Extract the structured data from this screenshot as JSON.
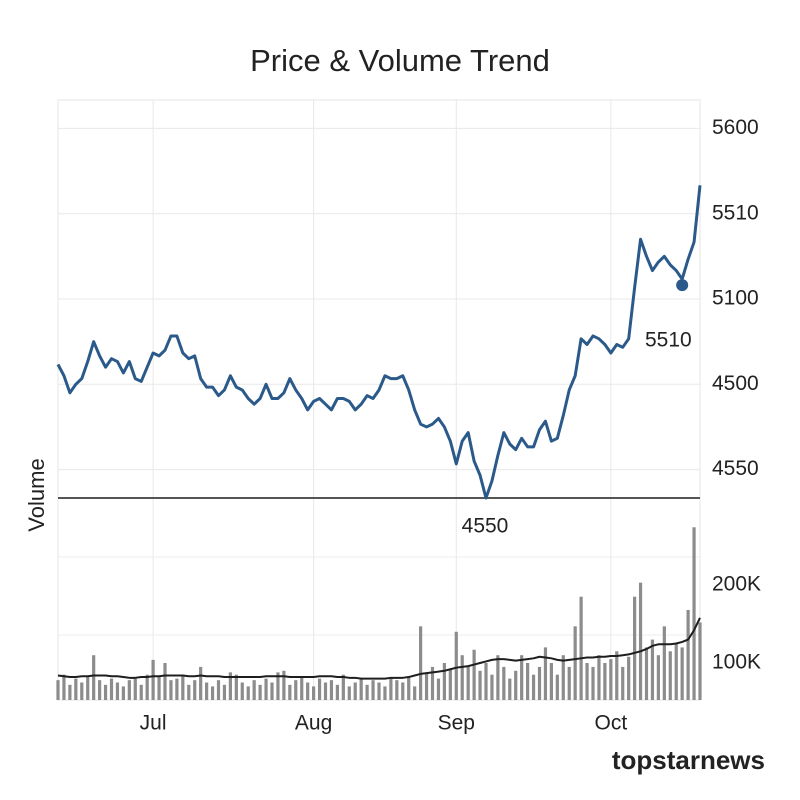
{
  "chart_data": {
    "type": "line",
    "title": "Price & Volume Trend",
    "y2_label": "Volume",
    "watermark": "topstarnews",
    "categories": [
      null,
      null,
      null,
      null,
      null,
      null,
      null,
      null,
      null,
      null,
      null,
      null,
      null,
      null,
      null,
      null,
      "Jul",
      null,
      null,
      null,
      null,
      null,
      null,
      null,
      null,
      null,
      null,
      null,
      null,
      null,
      null,
      null,
      null,
      null,
      null,
      null,
      null,
      null,
      null,
      null,
      null,
      null,
      null,
      "Aug",
      null,
      null,
      null,
      null,
      null,
      null,
      null,
      null,
      null,
      null,
      null,
      null,
      null,
      null,
      null,
      null,
      null,
      null,
      null,
      null,
      null,
      null,
      null,
      "Sep",
      null,
      null,
      null,
      null,
      null,
      null,
      null,
      null,
      null,
      null,
      null,
      null,
      null,
      null,
      null,
      null,
      null,
      null,
      null,
      null,
      null,
      null,
      null,
      null,
      null,
      "Oct",
      null,
      null,
      null,
      null,
      null,
      null,
      null,
      null,
      null,
      null,
      null,
      null,
      null,
      null,
      null
    ],
    "ylim": [
      4300,
      5700
    ],
    "yticks": [
      5600,
      {
        "value": 5300,
        "label": "5510"
      },
      {
        "value": 5000,
        "label": "5100"
      },
      {
        "value": 4700,
        "label": "4500"
      },
      {
        "value": 4400,
        "label": "4550"
      }
    ],
    "y2lim": [
      50000,
      280000
    ],
    "y2ticks": [
      {
        "value": 200000,
        "label": "200K"
      },
      {
        "value": 100000,
        "label": "100K"
      }
    ],
    "grid": true,
    "reference_line": 4300,
    "annotations": [
      {
        "text": "5510"
      },
      {
        "text": "4550"
      }
    ],
    "series": [
      {
        "type": "line",
        "color": "#2b5a8a",
        "axis": "y",
        "values": [
          4770,
          4730,
          4670,
          4700,
          4720,
          4780,
          4850,
          4800,
          4760,
          4790,
          4780,
          4740,
          4780,
          4720,
          4710,
          4760,
          4810,
          4800,
          4820,
          4870,
          4870,
          4810,
          4790,
          4800,
          4720,
          4690,
          4690,
          4660,
          4680,
          4730,
          4690,
          4680,
          4650,
          4630,
          4650,
          4700,
          4650,
          4650,
          4670,
          4720,
          4680,
          4650,
          4610,
          4640,
          4650,
          4630,
          4610,
          4650,
          4650,
          4640,
          4610,
          4630,
          4660,
          4650,
          4680,
          4730,
          4720,
          4720,
          4730,
          4680,
          4610,
          4560,
          4550,
          4560,
          4580,
          4550,
          4500,
          4420,
          4500,
          4530,
          4430,
          4380,
          4300,
          4360,
          4450,
          4530,
          4490,
          4470,
          4510,
          4480,
          4480,
          4540,
          4570,
          4500,
          4510,
          4590,
          4680,
          4730,
          4860,
          4840,
          4870,
          4860,
          4840,
          4810,
          4840,
          4830,
          4860,
          5040,
          5210,
          5150,
          5100,
          5130,
          5150,
          5120,
          5100,
          5070,
          5140,
          5200,
          5400
        ]
      },
      {
        "type": "bar",
        "color": "#8c8c8c",
        "axis": "y2",
        "values": [
          78000,
          85000,
          72000,
          80000,
          75000,
          82000,
          110000,
          78000,
          72000,
          80000,
          75000,
          70000,
          78000,
          80000,
          72000,
          85000,
          104000,
          82000,
          100000,
          78000,
          80000,
          85000,
          72000,
          78000,
          95000,
          75000,
          70000,
          78000,
          72000,
          88000,
          85000,
          75000,
          70000,
          78000,
          72000,
          80000,
          75000,
          88000,
          90000,
          72000,
          78000,
          82000,
          75000,
          70000,
          80000,
          75000,
          78000,
          72000,
          85000,
          70000,
          75000,
          80000,
          72000,
          78000,
          75000,
          70000,
          80000,
          78000,
          75000,
          82000,
          70000,
          147000,
          88000,
          95000,
          80000,
          100000,
          92000,
          140000,
          110000,
          95000,
          117000,
          90000,
          100000,
          85000,
          110000,
          95000,
          80000,
          90000,
          110000,
          100000,
          85000,
          95000,
          120000,
          100000,
          85000,
          110000,
          95000,
          147000,
          185000,
          100000,
          95000,
          110000,
          100000,
          105000,
          115000,
          95000,
          108000,
          185000,
          203000,
          120000,
          130000,
          110000,
          147000,
          115000,
          125000,
          120000,
          168000,
          274000,
          152000
        ]
      },
      {
        "type": "line",
        "color": "#1e1e1e",
        "axis": "y2",
        "values": [
          84000,
          83000,
          82000,
          82000,
          83000,
          83000,
          84000,
          84000,
          84000,
          83000,
          83000,
          82000,
          81000,
          81000,
          82000,
          82000,
          83000,
          83000,
          84000,
          84000,
          84000,
          84000,
          83000,
          83000,
          84000,
          83000,
          83000,
          83000,
          82000,
          82000,
          82000,
          82000,
          82000,
          82000,
          82000,
          83000,
          83000,
          83000,
          83000,
          82000,
          82000,
          82000,
          82000,
          82000,
          83000,
          83000,
          83000,
          82000,
          82000,
          81000,
          81000,
          80000,
          80000,
          80000,
          80000,
          80000,
          81000,
          81000,
          81000,
          82000,
          84000,
          86000,
          87000,
          88000,
          89000,
          90000,
          92000,
          94000,
          95000,
          96000,
          98000,
          100000,
          102000,
          104000,
          105000,
          105000,
          104000,
          103000,
          104000,
          105000,
          106000,
          108000,
          107000,
          106000,
          104000,
          103000,
          104000,
          105000,
          106000,
          107000,
          107000,
          108000,
          108000,
          109000,
          109000,
          110000,
          111000,
          113000,
          115000,
          118000,
          122000,
          124000,
          124000,
          124000,
          125000,
          127000,
          130000,
          142000,
          158000
        ]
      }
    ]
  }
}
